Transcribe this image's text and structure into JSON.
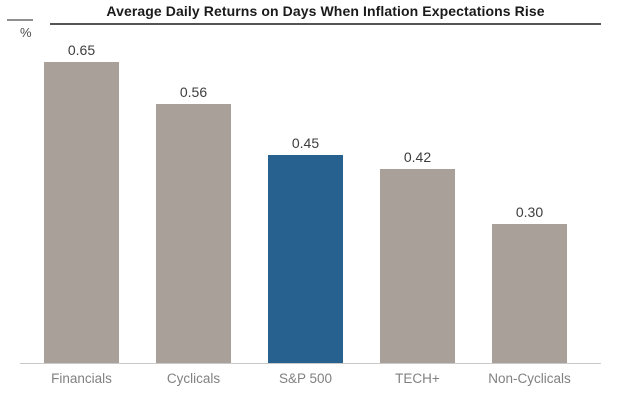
{
  "header": {
    "title": "Average Daily Returns on Days When Inflation Expectations Rise",
    "y_axis_unit": "%"
  },
  "chart_data": {
    "type": "bar",
    "title": "Average Daily Returns on Days When Inflation Expectations Rise",
    "ylabel": "%",
    "categories": [
      "Financials",
      "Cyclicals",
      "S&P 500",
      "TECH+",
      "Non-Cyclicals"
    ],
    "values": [
      0.65,
      0.56,
      0.45,
      0.42,
      0.3
    ],
    "value_labels": [
      "0.65",
      "0.56",
      "0.45",
      "0.42",
      "0.30"
    ],
    "highlight_index": 2,
    "highlighted_category": "S&P 500",
    "colors": {
      "bar_default": "#a8a099",
      "bar_highlight": "#26618f",
      "value_label": "#3d3d3d",
      "category_label": "#818181",
      "baseline": "#c9c9c9"
    },
    "ylim": [
      0,
      0.7
    ],
    "grid": false,
    "legend": false,
    "data_labels_shown": true
  }
}
